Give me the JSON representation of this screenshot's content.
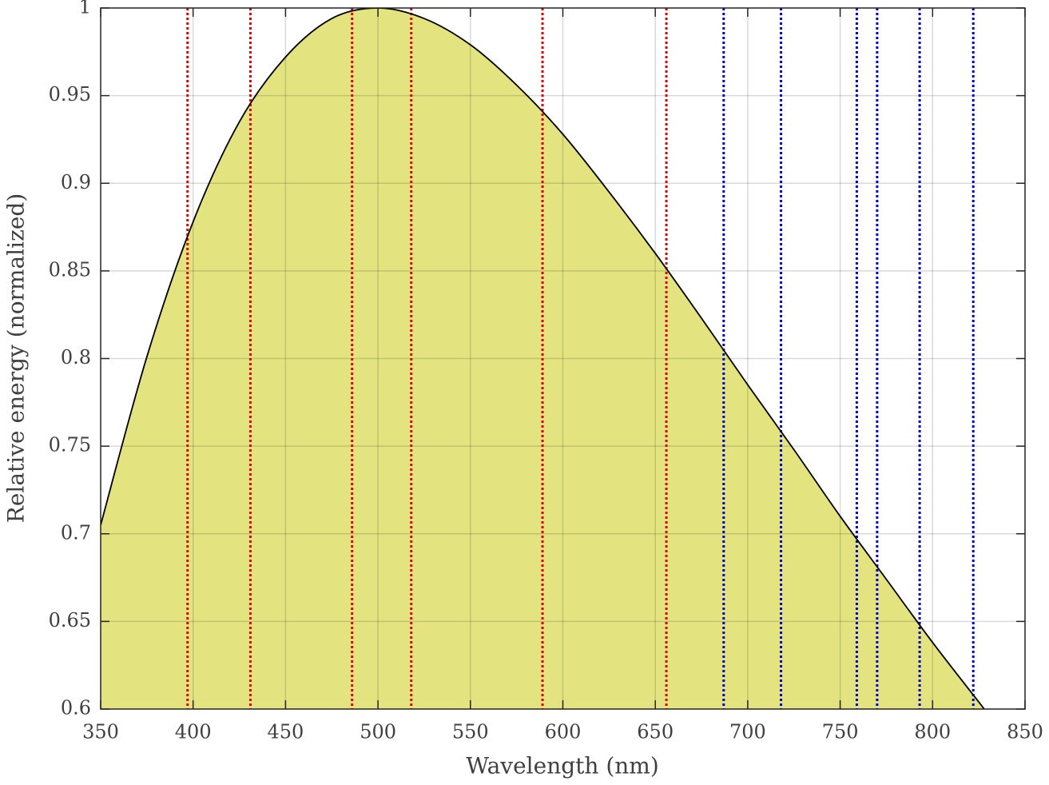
{
  "chart_data": {
    "type": "area",
    "xlabel": "Wavelength (nm)",
    "ylabel": "Relative energy (normalized)",
    "x": [
      350,
      375,
      400,
      425,
      450,
      475,
      500,
      525,
      550,
      575,
      600,
      625,
      650,
      675,
      700,
      725,
      750,
      775,
      800,
      825,
      830
    ],
    "values": [
      0.705,
      0.801,
      0.878,
      0.935,
      0.972,
      0.994,
      1,
      0.994,
      0.979,
      0.956,
      0.928,
      0.895,
      0.86,
      0.823,
      0.785,
      0.748,
      0.71,
      0.674,
      0.638,
      0.604,
      0.597
    ],
    "color": "#e3e480",
    "line_color": "#000000",
    "vertical_lines": [
      {
        "color": "#e00000",
        "x": [
          397,
          431,
          486,
          518,
          589,
          656
        ]
      },
      {
        "color": "#0000cc",
        "x": [
          687,
          718,
          759,
          770,
          793,
          822
        ]
      }
    ],
    "xlim": [
      350,
      850
    ],
    "xticks": [
      350,
      400,
      450,
      500,
      550,
      600,
      650,
      700,
      750,
      800,
      850
    ],
    "ylim": [
      0.6,
      1
    ],
    "yticks": [
      0.6,
      0.65,
      0.7,
      0.75,
      0.8,
      0.85,
      0.9,
      0.95,
      1
    ],
    "grid": true
  }
}
